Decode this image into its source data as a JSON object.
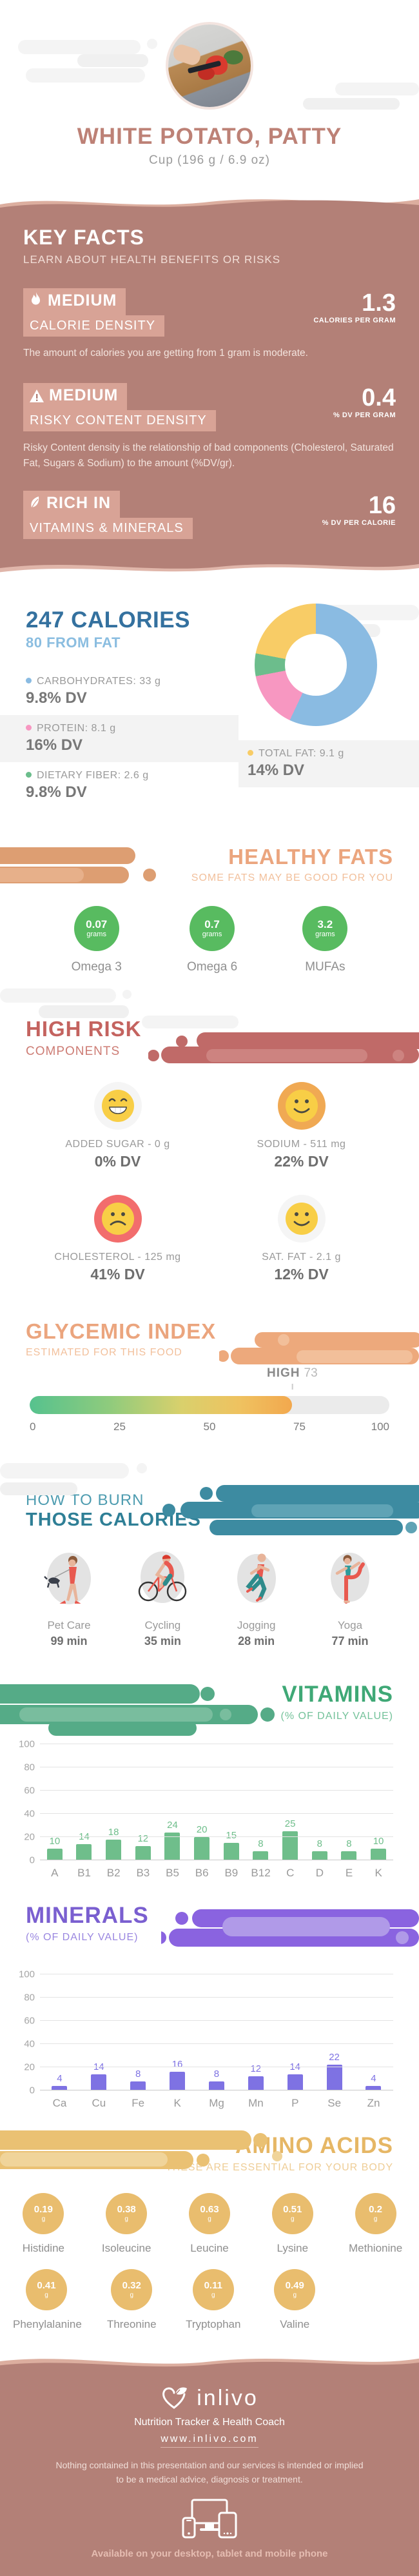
{
  "theme": {
    "rose": "#b38077",
    "rose_light": "#d8a396",
    "blue": "#34719f",
    "blue_light": "#8abde0",
    "orange": "#eba57e",
    "green": "#58bb60",
    "red": "#c4635f",
    "teal": "#2f7f96",
    "vitamin_green": "#6fbe8b",
    "mineral_purple": "#7e72e3",
    "gold": "#e9bd6e"
  },
  "header": {
    "title": "WHITE POTATO, PATTY",
    "subtitle": "Cup (196 g / 6.9 oz)"
  },
  "key_facts": {
    "title": "KEY FACTS",
    "subtitle": "LEARN ABOUT HEALTH BENEFITS OR RISKS",
    "facts": [
      {
        "level": "MEDIUM",
        "name": "CALORIE DENSITY",
        "value": "1.3",
        "unit": "CALORIES PER GRAM",
        "desc": "The amount of calories you are getting from 1 gram is moderate.",
        "icon": "flame-icon"
      },
      {
        "level": "MEDIUM",
        "name": "RISKY CONTENT DENSITY",
        "value": "0.4",
        "unit": "% DV PER GRAM",
        "desc": "Risky Content density is the relationship of bad components (Cholesterol, Saturated Fat, Sugars & Sodium) to the amount (%DV/gr).",
        "icon": "warning-icon"
      },
      {
        "level": "RICH IN",
        "name": "VITAMINS & MINERALS",
        "value": "16",
        "unit": "% DV PER CALORIE",
        "desc": "",
        "icon": "leaf-icon"
      }
    ]
  },
  "chart_data": [
    {
      "type": "pie",
      "title": "247 CALORIES",
      "subtitle": "80 FROM FAT",
      "legend_position": "left",
      "slices": [
        {
          "label": "CARBOHYDRATES: 33 g",
          "dv": "9.8% DV",
          "pct": 57,
          "color": "#8abbe2"
        },
        {
          "label": "PROTEIN: 8.1 g",
          "dv": "16% DV",
          "pct": 15,
          "color": "#f797c1"
        },
        {
          "label": "DIETARY FIBER: 2.6 g",
          "dv": "9.8% DV",
          "pct": 6,
          "color": "#6cbd8c"
        },
        {
          "label": "TOTAL FAT: 9.1 g",
          "dv": "14% DV",
          "pct": 22,
          "color": "#f8cc66"
        }
      ]
    },
    {
      "type": "gauge",
      "title": "GLYCEMIC INDEX",
      "subtitle": "ESTIMATED FOR THIS FOOD",
      "level": "HIGH",
      "value": 73,
      "range": [
        0,
        100
      ],
      "ticks": [
        0,
        25,
        50,
        75,
        100
      ]
    },
    {
      "type": "bar",
      "title": "VITAMINS",
      "subtitle": "(% OF DAILY VALUE)",
      "categories": [
        "A",
        "B1",
        "B2",
        "B3",
        "B5",
        "B6",
        "B9",
        "B12",
        "C",
        "D",
        "E",
        "K"
      ],
      "values": [
        10,
        14,
        18,
        12,
        24,
        20,
        15,
        8,
        25,
        8,
        8,
        10
      ],
      "ylim": [
        0,
        100
      ],
      "yticks": [
        0,
        20,
        40,
        60,
        80,
        100
      ],
      "grid": true,
      "color": "#6fbe8b"
    },
    {
      "type": "bar",
      "title": "MINERALS",
      "subtitle": "(% OF DAILY VALUE)",
      "categories": [
        "Ca",
        "Cu",
        "Fe",
        "K",
        "Mg",
        "Mn",
        "P",
        "Se",
        "Zn"
      ],
      "values": [
        4,
        14,
        8,
        16,
        8,
        12,
        14,
        22,
        4
      ],
      "ylim": [
        0,
        100
      ],
      "yticks": [
        0,
        20,
        40,
        60,
        80,
        100
      ],
      "grid": true,
      "color": "#7e72e3"
    }
  ],
  "healthy_fats": {
    "title": "HEALTHY FATS",
    "subtitle": "SOME FATS MAY BE GOOD FOR YOU",
    "unit": "grams",
    "items": [
      {
        "value": "0.07",
        "label": "Omega 3"
      },
      {
        "value": "0.7",
        "label": "Omega 6"
      },
      {
        "value": "3.2",
        "label": "MUFAs"
      }
    ]
  },
  "high_risk": {
    "title": "HIGH RISK",
    "subtitle": "COMPONENTS",
    "items": [
      {
        "label": "ADDED SUGAR - 0 g",
        "dv": "0% DV",
        "mood": "grin",
        "circle_color": "#f5f5f5"
      },
      {
        "label": "SODIUM - 511 mg",
        "dv": "22% DV",
        "mood": "smile",
        "circle_color": "#f0a953"
      },
      {
        "label": "CHOLESTEROL - 125 mg",
        "dv": "41% DV",
        "mood": "frown",
        "circle_color": "#f26d6d"
      },
      {
        "label": "SAT. FAT - 2.1 g",
        "dv": "12% DV",
        "mood": "smile",
        "circle_color": "#f5f5f5"
      }
    ]
  },
  "burn": {
    "title_line1": "HOW TO BURN",
    "title_line2": "THOSE CALORIES",
    "activities": [
      {
        "label": "Pet Care",
        "minutes": "99 min"
      },
      {
        "label": "Cycling",
        "minutes": "35 min"
      },
      {
        "label": "Jogging",
        "minutes": "28 min"
      },
      {
        "label": "Yoga",
        "minutes": "77 min"
      }
    ]
  },
  "amino": {
    "title": "AMINO ACIDS",
    "subtitle": "THESE ARE ESSENTIAL FOR YOUR BODY",
    "unit": "g",
    "items": [
      {
        "value": "0.19",
        "label": "Histidine"
      },
      {
        "value": "0.38",
        "label": "Isoleucine"
      },
      {
        "value": "0.63",
        "label": "Leucine"
      },
      {
        "value": "0.51",
        "label": "Lysine"
      },
      {
        "value": "0.2",
        "label": "Methionine"
      },
      {
        "value": "0.41",
        "label": "Phenylalanine"
      },
      {
        "value": "0.32",
        "label": "Threonine"
      },
      {
        "value": "0.11",
        "label": "Tryptophan"
      },
      {
        "value": "0.49",
        "label": "Valine"
      }
    ]
  },
  "footer": {
    "brand": "inlivo",
    "tagline": "Nutrition Tracker & Health Coach",
    "url": "www.inlivo.com",
    "disclaimer": "Nothing contained in this presentation and our services is intended or implied to be a medical advice, diagnosis or treatment.",
    "availability": "Available on your desktop, tablet and mobile phone"
  }
}
